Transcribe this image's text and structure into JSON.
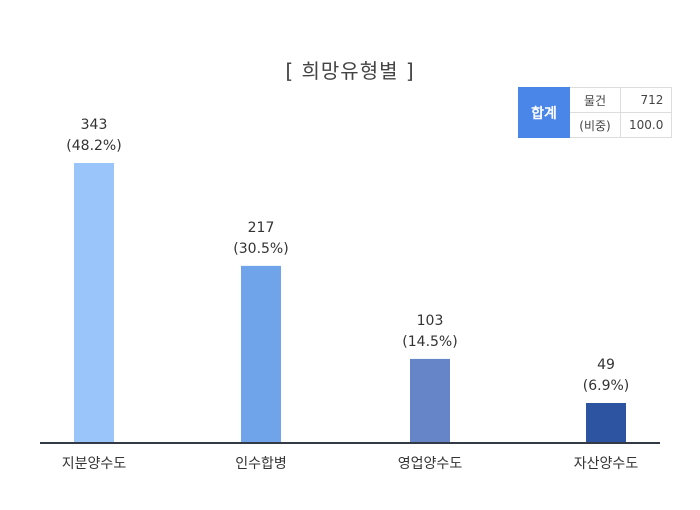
{
  "chart_data": {
    "type": "bar",
    "title": "[ 희망유형별 ]",
    "categories": [
      "지분양수도",
      "인수합병",
      "영업양수도",
      "자산양수도"
    ],
    "values": [
      343,
      217,
      103,
      49
    ],
    "value_labels": [
      "343",
      "217",
      "103",
      "49"
    ],
    "percent_labels": [
      "(48.2%)",
      "(30.5%)",
      "(14.5%)",
      "(6.9%)"
    ],
    "colors": [
      "#9ac5fb",
      "#6fa3ea",
      "#6684c8",
      "#2d54a0"
    ],
    "ylim": [
      0,
      360
    ],
    "grid": false,
    "xlabel": "",
    "ylabel": ""
  },
  "summary": {
    "header": "합계",
    "rows": [
      {
        "label": "물건",
        "value": "712"
      },
      {
        "label": "(비중)",
        "value": "100.0"
      }
    ]
  }
}
